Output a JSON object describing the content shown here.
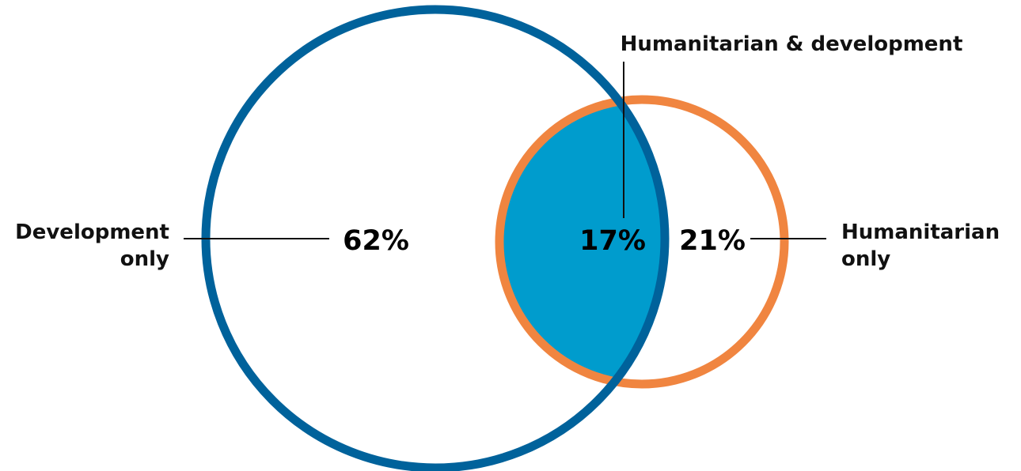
{
  "diagram": {
    "type": "venn",
    "colors": {
      "development": "#00629b",
      "humanitarian": "#f08540",
      "overlap": "#009ccd",
      "leader": "#111111"
    },
    "sets": {
      "development": {
        "label_line1": "Development",
        "label_line2": "only",
        "value": "62%"
      },
      "humanitarian": {
        "label_line1": "Humanitarian",
        "label_line2": "only",
        "value": "21%"
      },
      "overlap": {
        "label": "Humanitarian & development",
        "value": "17%"
      }
    }
  }
}
